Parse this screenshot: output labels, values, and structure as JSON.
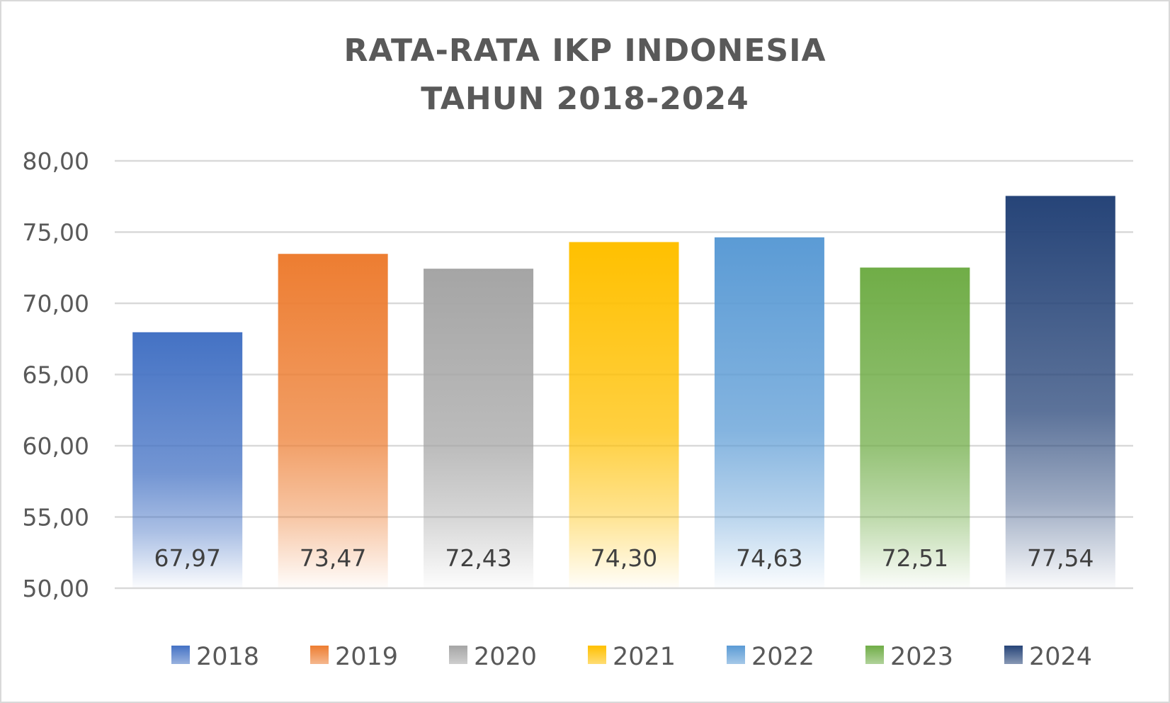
{
  "chart_data": {
    "type": "bar",
    "title": [
      "RATA-RATA IKP INDONESIA",
      "TAHUN 2018-2024"
    ],
    "categories": [
      "2018",
      "2019",
      "2020",
      "2021",
      "2022",
      "2023",
      "2024"
    ],
    "values": [
      67.97,
      73.47,
      72.43,
      74.3,
      74.63,
      72.51,
      77.54
    ],
    "data_labels": [
      "67,97",
      "73,47",
      "72,43",
      "74,30",
      "74,63",
      "72,51",
      "77,54"
    ],
    "ylim": [
      50,
      80
    ],
    "y_ticks": [
      50,
      55,
      60,
      65,
      70,
      75,
      80
    ],
    "y_tick_labels": [
      "50,00",
      "55,00",
      "60,00",
      "65,00",
      "70,00",
      "75,00",
      "80,00"
    ],
    "xlabel": "",
    "ylabel": "",
    "grid": true,
    "legend": {
      "placement": "bottom",
      "entries": [
        "2018",
        "2019",
        "2020",
        "2021",
        "2022",
        "2023",
        "2024"
      ]
    },
    "colors": {
      "2018": "#4472c4",
      "2019": "#ed7d31",
      "2020": "#a5a5a5",
      "2021": "#ffc000",
      "2022": "#5b9bd5",
      "2023": "#70ad47",
      "2024": "#264478"
    },
    "style": "gradient fill fading to white toward the base"
  }
}
